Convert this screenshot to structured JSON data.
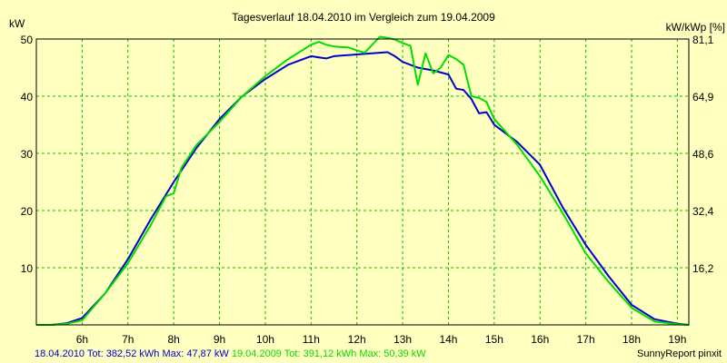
{
  "chart_data": {
    "type": "line",
    "title": "Tagesverlauf 18.04.2010 im Vergleich zum 19.04.2009",
    "ylabel_left": "kW",
    "ylabel_right": "kW/kWp [%]",
    "ylim": [
      0,
      50
    ],
    "yticks": [
      10,
      20,
      30,
      40,
      50
    ],
    "right_ticks": [
      {
        "at": 10,
        "label": "16,2"
      },
      {
        "at": 20,
        "label": "32,4"
      },
      {
        "at": 30,
        "label": "48,6"
      },
      {
        "at": 40,
        "label": "64,9"
      },
      {
        "at": 50,
        "label": "81,1"
      }
    ],
    "xlim": [
      5.0,
      19.25
    ],
    "xticks": [
      {
        "at": 6,
        "label": "6h"
      },
      {
        "at": 7,
        "label": "7h"
      },
      {
        "at": 8,
        "label": "8h"
      },
      {
        "at": 9,
        "label": "9h"
      },
      {
        "at": 10,
        "label": "10h"
      },
      {
        "at": 11,
        "label": "11h"
      },
      {
        "at": 12,
        "label": "12h"
      },
      {
        "at": 13,
        "label": "13h"
      },
      {
        "at": 14,
        "label": "14h"
      },
      {
        "at": 15,
        "label": "15h"
      },
      {
        "at": 16,
        "label": "16h"
      },
      {
        "at": 17,
        "label": "17h"
      },
      {
        "at": 18,
        "label": "18h"
      },
      {
        "at": 19,
        "label": "19h"
      }
    ],
    "grid": true,
    "series": [
      {
        "name": "18.04.2010",
        "color": "#0000cc",
        "x": [
          5.0,
          5.33,
          5.67,
          6.0,
          6.5,
          7.0,
          7.5,
          8.0,
          8.5,
          9.0,
          9.5,
          10.0,
          10.5,
          10.83,
          11.0,
          11.17,
          11.33,
          11.5,
          12.0,
          12.5,
          12.67,
          12.83,
          13.0,
          13.33,
          13.67,
          14.0,
          14.17,
          14.33,
          14.5,
          14.67,
          14.83,
          15.0,
          15.5,
          16.0,
          16.5,
          17.0,
          17.5,
          18.0,
          18.5,
          19.0,
          19.25
        ],
        "y": [
          0,
          0,
          0.3,
          1.2,
          5.5,
          11.5,
          18.5,
          25.0,
          31.0,
          36.0,
          40.0,
          43.0,
          45.5,
          46.5,
          47.0,
          46.8,
          46.6,
          47.0,
          47.3,
          47.6,
          47.7,
          47.0,
          46.0,
          45.0,
          44.5,
          43.8,
          41.3,
          41.1,
          39.5,
          37.0,
          37.2,
          35.0,
          32.0,
          28.0,
          20.5,
          14.0,
          8.5,
          3.5,
          1.0,
          0.2,
          0
        ]
      },
      {
        "name": "19.04.2009",
        "color": "#00dd00",
        "x": [
          5.0,
          5.33,
          5.67,
          6.0,
          6.5,
          7.0,
          7.5,
          7.83,
          8.0,
          8.17,
          8.5,
          9.0,
          9.5,
          10.0,
          10.5,
          11.0,
          11.17,
          11.33,
          11.5,
          11.83,
          12.0,
          12.17,
          12.5,
          12.67,
          12.83,
          13.0,
          13.17,
          13.33,
          13.5,
          13.67,
          13.83,
          14.0,
          14.17,
          14.33,
          14.5,
          14.67,
          14.83,
          15.0,
          15.5,
          16.0,
          16.5,
          17.0,
          17.5,
          18.0,
          18.5,
          19.0,
          19.25
        ],
        "y": [
          0,
          0,
          0.2,
          0.8,
          5.5,
          10.8,
          17.5,
          22.5,
          23.0,
          27.5,
          31.5,
          35.5,
          40.0,
          43.5,
          46.5,
          49.0,
          49.5,
          49.0,
          48.7,
          48.5,
          48.0,
          47.6,
          50.39,
          50.2,
          49.9,
          49.3,
          48.8,
          42.0,
          47.5,
          44.0,
          45.0,
          47.2,
          46.5,
          45.5,
          40.0,
          39.7,
          39.0,
          36.0,
          31.5,
          26.0,
          19.5,
          12.5,
          7.5,
          3.0,
          0.6,
          0.1,
          0
        ]
      }
    ]
  },
  "footer": {
    "series1_text": "18.04.2010 Tot: 382,52 kWh Max: 47,87 kW",
    "series2_text": "19.04.2009 Tot: 391,12 kWh Max: 50,39 kW",
    "credit": "SunnyReport pinxit"
  },
  "colors": {
    "background": "#ffffc0",
    "grid": "#00c000",
    "axis": "#000000"
  }
}
